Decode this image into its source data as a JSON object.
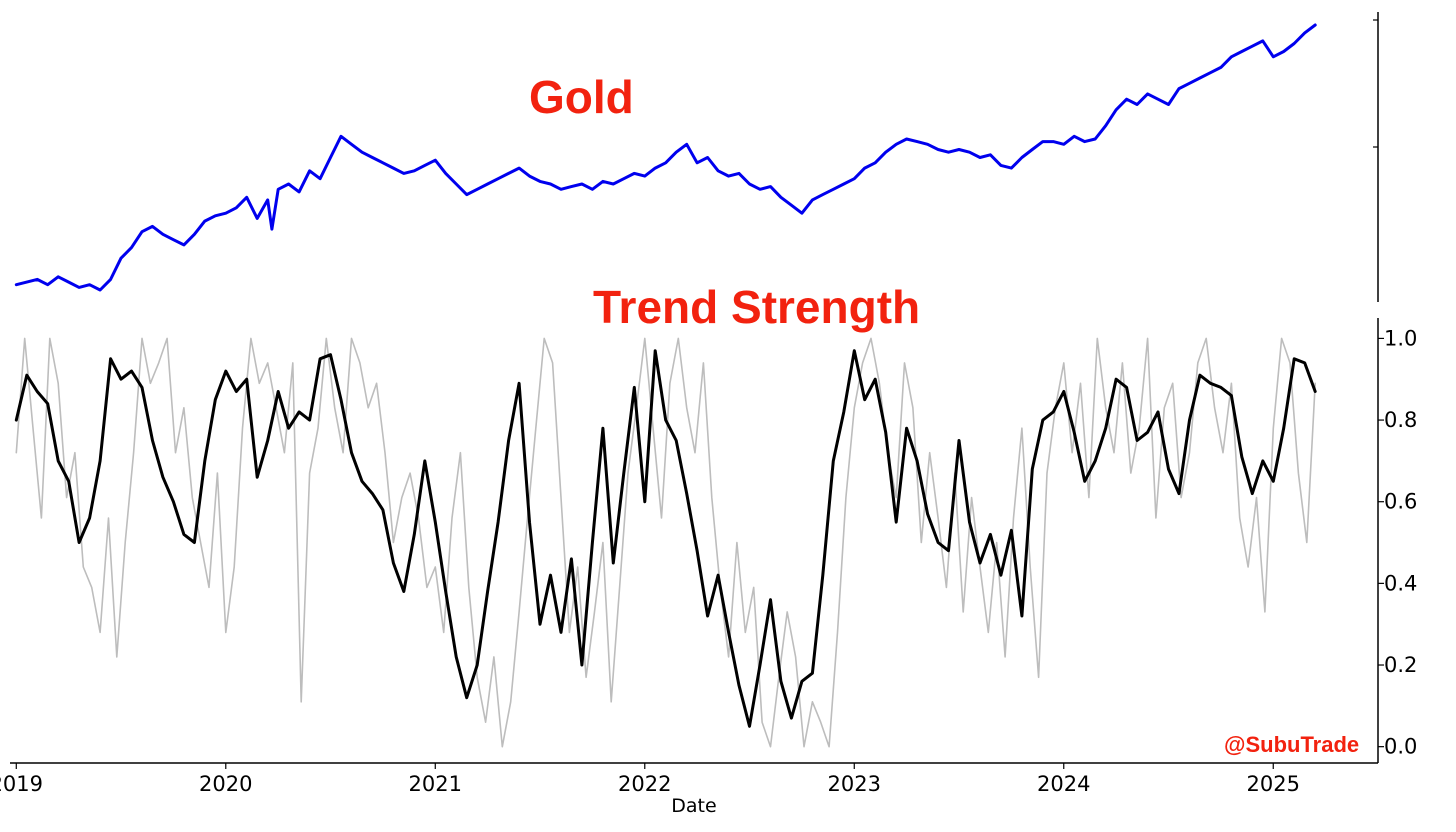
{
  "colors": {
    "title": "#f2220f",
    "gold_line": "#0000ee",
    "raw_line": "#bdbdbd",
    "smooth_line": "#000000",
    "watermark": "#f2220f"
  },
  "watermark": "@SubuTrade",
  "chart_data": [
    {
      "type": "line",
      "title": "Gold",
      "xlabel": "",
      "ylabel": "",
      "grid": false,
      "xlim": [
        2018.97,
        2025.5
      ],
      "ylim": [
        0,
        1
      ],
      "y_ticks_labeled": false,
      "series": [
        {
          "color": "#0000ee",
          "x": [
            2019.0,
            2019.05,
            2019.1,
            2019.15,
            2019.2,
            2019.25,
            2019.3,
            2019.35,
            2019.4,
            2019.45,
            2019.5,
            2019.55,
            2019.6,
            2019.65,
            2019.7,
            2019.75,
            2019.8,
            2019.85,
            2019.9,
            2019.95,
            2020.0,
            2020.05,
            2020.1,
            2020.15,
            2020.2,
            2020.22,
            2020.25,
            2020.3,
            2020.35,
            2020.4,
            2020.45,
            2020.5,
            2020.55,
            2020.6,
            2020.65,
            2020.7,
            2020.75,
            2020.8,
            2020.85,
            2020.9,
            2020.95,
            2021.0,
            2021.05,
            2021.1,
            2021.15,
            2021.2,
            2021.25,
            2021.3,
            2021.35,
            2021.4,
            2021.45,
            2021.5,
            2021.55,
            2021.6,
            2021.65,
            2021.7,
            2021.75,
            2021.8,
            2021.85,
            2021.9,
            2021.95,
            2022.0,
            2022.05,
            2022.1,
            2022.15,
            2022.2,
            2022.25,
            2022.3,
            2022.35,
            2022.4,
            2022.45,
            2022.5,
            2022.55,
            2022.6,
            2022.65,
            2022.7,
            2022.75,
            2022.8,
            2022.85,
            2022.9,
            2022.95,
            2023.0,
            2023.05,
            2023.1,
            2023.15,
            2023.2,
            2023.25,
            2023.3,
            2023.35,
            2023.4,
            2023.45,
            2023.5,
            2023.55,
            2023.6,
            2023.65,
            2023.7,
            2023.75,
            2023.8,
            2023.85,
            2023.9,
            2023.95,
            2024.0,
            2024.05,
            2024.1,
            2024.15,
            2024.2,
            2024.25,
            2024.3,
            2024.35,
            2024.4,
            2024.45,
            2024.5,
            2024.55,
            2024.6,
            2024.65,
            2024.7,
            2024.75,
            2024.8,
            2024.85,
            2024.9,
            2024.95,
            2025.0,
            2025.05,
            2025.1,
            2025.15,
            2025.2
          ],
          "y": [
            0.02,
            0.03,
            0.04,
            0.02,
            0.05,
            0.03,
            0.01,
            0.02,
            0.0,
            0.04,
            0.12,
            0.16,
            0.22,
            0.24,
            0.21,
            0.19,
            0.17,
            0.21,
            0.26,
            0.28,
            0.29,
            0.31,
            0.35,
            0.27,
            0.34,
            0.23,
            0.38,
            0.4,
            0.37,
            0.45,
            0.42,
            0.5,
            0.58,
            0.55,
            0.52,
            0.5,
            0.48,
            0.46,
            0.44,
            0.45,
            0.47,
            0.49,
            0.44,
            0.4,
            0.36,
            0.38,
            0.4,
            0.42,
            0.44,
            0.46,
            0.43,
            0.41,
            0.4,
            0.38,
            0.39,
            0.4,
            0.38,
            0.41,
            0.4,
            0.42,
            0.44,
            0.43,
            0.46,
            0.48,
            0.52,
            0.55,
            0.48,
            0.5,
            0.45,
            0.43,
            0.44,
            0.4,
            0.38,
            0.39,
            0.35,
            0.32,
            0.29,
            0.34,
            0.36,
            0.38,
            0.4,
            0.42,
            0.46,
            0.48,
            0.52,
            0.55,
            0.57,
            0.56,
            0.55,
            0.53,
            0.52,
            0.53,
            0.52,
            0.5,
            0.51,
            0.47,
            0.46,
            0.5,
            0.53,
            0.56,
            0.56,
            0.55,
            0.58,
            0.56,
            0.57,
            0.62,
            0.68,
            0.72,
            0.7,
            0.74,
            0.72,
            0.7,
            0.76,
            0.78,
            0.8,
            0.82,
            0.84,
            0.88,
            0.9,
            0.92,
            0.94,
            0.88,
            0.9,
            0.93,
            0.97,
            1.0
          ]
        }
      ]
    },
    {
      "type": "line",
      "title": "Trend Strength",
      "xlabel": "Date",
      "ylabel": "",
      "grid": false,
      "xlim": [
        2018.97,
        2025.5
      ],
      "ylim": [
        -0.04,
        1.05
      ],
      "x_ticks": [
        "2019",
        "2020",
        "2021",
        "2022",
        "2023",
        "2024",
        "2025"
      ],
      "y_ticks": [
        "0.0",
        "0.2",
        "0.4",
        "0.6",
        "0.8",
        "1.0"
      ],
      "series": [
        {
          "color": "#bdbdbd",
          "x": [
            2019.0,
            2019.04,
            2019.08,
            2019.12,
            2019.16,
            2019.2,
            2019.24,
            2019.28,
            2019.32,
            2019.36,
            2019.4,
            2019.44,
            2019.48,
            2019.52,
            2019.56,
            2019.6,
            2019.64,
            2019.68,
            2019.72,
            2019.76,
            2019.8,
            2019.84,
            2019.88,
            2019.92,
            2019.96,
            2020.0,
            2020.04,
            2020.08,
            2020.12,
            2020.16,
            2020.2,
            2020.24,
            2020.28,
            2020.32,
            2020.36,
            2020.4,
            2020.44,
            2020.48,
            2020.52,
            2020.56,
            2020.6,
            2020.64,
            2020.68,
            2020.72,
            2020.76,
            2020.8,
            2020.84,
            2020.88,
            2020.92,
            2020.96,
            2021.0,
            2021.04,
            2021.08,
            2021.12,
            2021.16,
            2021.2,
            2021.24,
            2021.28,
            2021.32,
            2021.36,
            2021.4,
            2021.44,
            2021.48,
            2021.52,
            2021.56,
            2021.6,
            2021.64,
            2021.68,
            2021.72,
            2021.76,
            2021.8,
            2021.84,
            2021.88,
            2021.92,
            2021.96,
            2022.0,
            2022.04,
            2022.08,
            2022.12,
            2022.16,
            2022.2,
            2022.24,
            2022.28,
            2022.32,
            2022.36,
            2022.4,
            2022.44,
            2022.48,
            2022.52,
            2022.56,
            2022.6,
            2022.64,
            2022.68,
            2022.72,
            2022.76,
            2022.8,
            2022.84,
            2022.88,
            2022.92,
            2022.96,
            2023.0,
            2023.04,
            2023.08,
            2023.12,
            2023.16,
            2023.2,
            2023.24,
            2023.28,
            2023.32,
            2023.36,
            2023.4,
            2023.44,
            2023.48,
            2023.52,
            2023.56,
            2023.6,
            2023.64,
            2023.68,
            2023.72,
            2023.76,
            2023.8,
            2023.84,
            2023.88,
            2023.92,
            2023.96,
            2024.0,
            2024.04,
            2024.08,
            2024.12,
            2024.16,
            2024.2,
            2024.24,
            2024.28,
            2024.32,
            2024.36,
            2024.4,
            2024.44,
            2024.48,
            2024.52,
            2024.56,
            2024.6,
            2024.64,
            2024.68,
            2024.72,
            2024.76,
            2024.8,
            2024.84,
            2024.88,
            2024.92,
            2024.96,
            2025.0,
            2025.04,
            2025.08,
            2025.12,
            2025.16,
            2025.2
          ],
          "y": [
            0.72,
            1.0,
            0.78,
            0.56,
            1.0,
            0.89,
            0.61,
            0.72,
            0.44,
            0.39,
            0.28,
            0.56,
            0.22,
            0.5,
            0.72,
            1.0,
            0.89,
            0.94,
            1.0,
            0.72,
            0.83,
            0.61,
            0.5,
            0.39,
            0.67,
            0.28,
            0.44,
            0.78,
            1.0,
            0.89,
            0.94,
            0.83,
            0.72,
            0.94,
            0.11,
            0.67,
            0.78,
            1.0,
            0.83,
            0.72,
            1.0,
            0.94,
            0.83,
            0.89,
            0.72,
            0.5,
            0.61,
            0.67,
            0.56,
            0.39,
            0.44,
            0.28,
            0.56,
            0.72,
            0.39,
            0.17,
            0.06,
            0.22,
            0.0,
            0.11,
            0.33,
            0.56,
            0.78,
            1.0,
            0.94,
            0.61,
            0.28,
            0.44,
            0.17,
            0.33,
            0.5,
            0.11,
            0.39,
            0.67,
            0.83,
            1.0,
            0.78,
            0.56,
            0.89,
            1.0,
            0.83,
            0.72,
            0.94,
            0.61,
            0.39,
            0.22,
            0.5,
            0.28,
            0.39,
            0.06,
            0.0,
            0.17,
            0.33,
            0.22,
            0.0,
            0.11,
            0.06,
            0.0,
            0.28,
            0.61,
            0.83,
            0.94,
            1.0,
            0.89,
            0.72,
            0.61,
            0.94,
            0.83,
            0.5,
            0.72,
            0.56,
            0.39,
            0.67,
            0.33,
            0.61,
            0.44,
            0.28,
            0.5,
            0.22,
            0.56,
            0.78,
            0.44,
            0.17,
            0.67,
            0.83,
            0.94,
            0.72,
            0.89,
            0.61,
            1.0,
            0.83,
            0.72,
            0.94,
            0.67,
            0.78,
            1.0,
            0.56,
            0.83,
            0.89,
            0.61,
            0.72,
            0.94,
            1.0,
            0.83,
            0.72,
            0.89,
            0.56,
            0.44,
            0.61,
            0.33,
            0.78,
            1.0,
            0.94,
            0.67,
            0.5,
            0.89
          ],
          "width": 1.6
        },
        {
          "color": "#000000",
          "x": [
            2019.0,
            2019.05,
            2019.1,
            2019.15,
            2019.2,
            2019.25,
            2019.3,
            2019.35,
            2019.4,
            2019.45,
            2019.5,
            2019.55,
            2019.6,
            2019.65,
            2019.7,
            2019.75,
            2019.8,
            2019.85,
            2019.9,
            2019.95,
            2020.0,
            2020.05,
            2020.1,
            2020.15,
            2020.2,
            2020.25,
            2020.3,
            2020.35,
            2020.4,
            2020.45,
            2020.5,
            2020.55,
            2020.6,
            2020.65,
            2020.7,
            2020.75,
            2020.8,
            2020.85,
            2020.9,
            2020.95,
            2021.0,
            2021.05,
            2021.1,
            2021.15,
            2021.2,
            2021.25,
            2021.3,
            2021.35,
            2021.4,
            2021.45,
            2021.5,
            2021.55,
            2021.6,
            2021.65,
            2021.7,
            2021.75,
            2021.8,
            2021.85,
            2021.9,
            2021.95,
            2022.0,
            2022.05,
            2022.1,
            2022.15,
            2022.2,
            2022.25,
            2022.3,
            2022.35,
            2022.4,
            2022.45,
            2022.5,
            2022.55,
            2022.6,
            2022.65,
            2022.7,
            2022.75,
            2022.8,
            2022.85,
            2022.9,
            2022.95,
            2023.0,
            2023.05,
            2023.1,
            2023.15,
            2023.2,
            2023.25,
            2023.3,
            2023.35,
            2023.4,
            2023.45,
            2023.5,
            2023.55,
            2023.6,
            2023.65,
            2023.7,
            2023.75,
            2023.8,
            2023.85,
            2023.9,
            2023.95,
            2024.0,
            2024.05,
            2024.1,
            2024.15,
            2024.2,
            2024.25,
            2024.3,
            2024.35,
            2024.4,
            2024.45,
            2024.5,
            2024.55,
            2024.6,
            2024.65,
            2024.7,
            2024.75,
            2024.8,
            2024.85,
            2024.9,
            2024.95,
            2025.0,
            2025.05,
            2025.1,
            2025.15,
            2025.2
          ],
          "y": [
            0.8,
            0.91,
            0.87,
            0.84,
            0.7,
            0.65,
            0.5,
            0.56,
            0.7,
            0.95,
            0.9,
            0.92,
            0.88,
            0.75,
            0.66,
            0.6,
            0.52,
            0.5,
            0.7,
            0.85,
            0.92,
            0.87,
            0.9,
            0.66,
            0.75,
            0.87,
            0.78,
            0.82,
            0.8,
            0.95,
            0.96,
            0.85,
            0.72,
            0.65,
            0.62,
            0.58,
            0.45,
            0.38,
            0.52,
            0.7,
            0.55,
            0.38,
            0.22,
            0.12,
            0.2,
            0.38,
            0.55,
            0.75,
            0.89,
            0.55,
            0.3,
            0.42,
            0.28,
            0.46,
            0.2,
            0.5,
            0.78,
            0.45,
            0.67,
            0.88,
            0.6,
            0.97,
            0.8,
            0.75,
            0.62,
            0.48,
            0.32,
            0.42,
            0.28,
            0.15,
            0.05,
            0.2,
            0.36,
            0.16,
            0.07,
            0.16,
            0.18,
            0.42,
            0.7,
            0.82,
            0.97,
            0.85,
            0.9,
            0.77,
            0.55,
            0.78,
            0.7,
            0.57,
            0.5,
            0.48,
            0.75,
            0.55,
            0.45,
            0.52,
            0.42,
            0.53,
            0.32,
            0.68,
            0.8,
            0.82,
            0.87,
            0.77,
            0.65,
            0.7,
            0.78,
            0.9,
            0.88,
            0.75,
            0.77,
            0.82,
            0.68,
            0.62,
            0.8,
            0.91,
            0.89,
            0.88,
            0.86,
            0.71,
            0.62,
            0.7,
            0.65,
            0.78,
            0.95,
            0.94,
            0.87
          ]
        }
      ]
    }
  ]
}
